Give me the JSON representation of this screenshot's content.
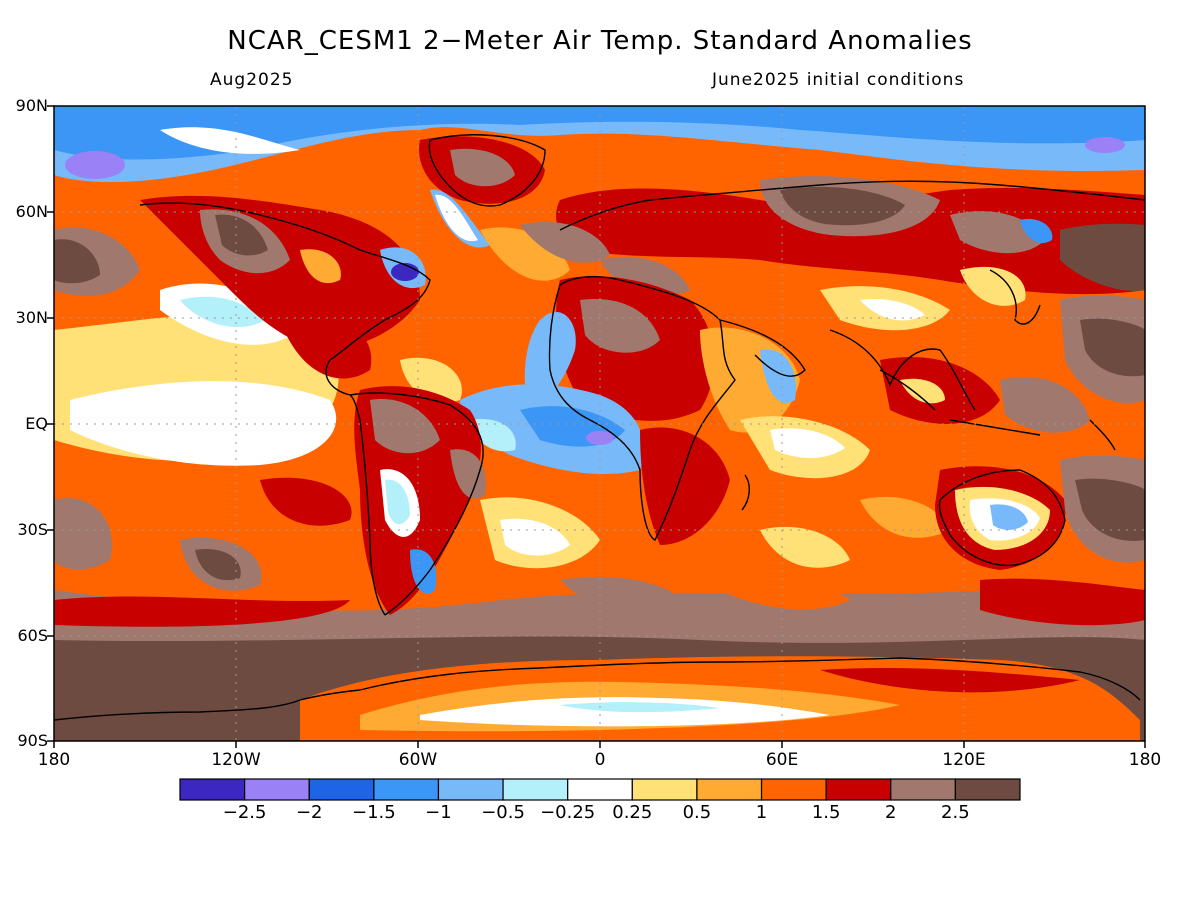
{
  "title": "NCAR_CESM1 2−Meter Air Temp. Standard Anomalies",
  "valid_month": "Aug2025",
  "initial_conditions": "June2025 initial conditions",
  "lat_labels": [
    "90N",
    "60N",
    "30N",
    "EQ",
    "30S",
    "60S",
    "90S"
  ],
  "lon_labels": [
    "180",
    "120W",
    "60W",
    "0",
    "60E",
    "120E",
    "180"
  ],
  "colorbar": {
    "colors": [
      "#3c28c0",
      "#9a82f6",
      "#1e64e6",
      "#3c96f5",
      "#78b9fa",
      "#b4f0fa",
      "#ffffff",
      "#ffe178",
      "#ffaa32",
      "#ff6400",
      "#c80000",
      "#a0786e",
      "#6e4b40"
    ],
    "labels": [
      "−2.5",
      "−2",
      "−1.5",
      "−1",
      "−0.5",
      "−0.25",
      "0.25",
      "0.5",
      "1",
      "1.5",
      "2",
      "2.5"
    ]
  }
}
